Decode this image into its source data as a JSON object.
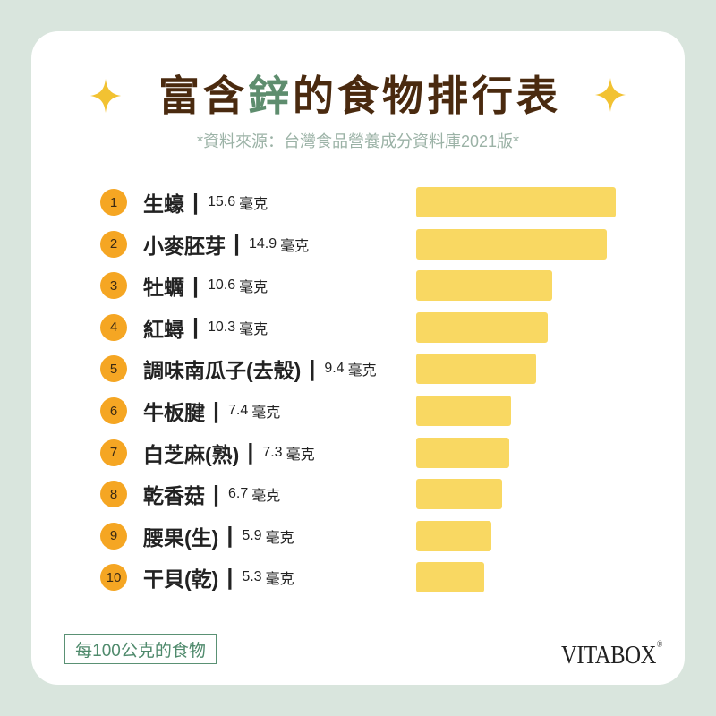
{
  "header": {
    "title_before": "富含",
    "title_highlight": "鋅",
    "title_after": "的食物排行表",
    "source": "*資料來源：台灣食品營養成分資料庫2021版*"
  },
  "chart_data": {
    "type": "bar",
    "orientation": "horizontal",
    "ranks": [
      "1",
      "2",
      "3",
      "4",
      "5",
      "6",
      "7",
      "8",
      "9",
      "10"
    ],
    "categories": [
      "生蠔",
      "小麥胚芽",
      "牡蠣",
      "紅蟳",
      "調味南瓜子(去殼)",
      "牛板腱",
      "白芝麻(熟)",
      "乾香菇",
      "腰果(生)",
      "干貝(乾)"
    ],
    "values": [
      15.6,
      14.9,
      10.6,
      10.3,
      9.4,
      7.4,
      7.3,
      6.7,
      5.9,
      5.3
    ],
    "unit": "毫克",
    "grid": false,
    "legend": "none"
  },
  "labels": {
    "separator": "|"
  },
  "footer": {
    "note": "每100公克的食物",
    "brand": "VITABOX",
    "brand_mark": "®"
  },
  "icons": {
    "title_left": "sparkle-icon",
    "title_right": "sparkle-icon"
  },
  "colors": {
    "page_background": "#d9e5dd",
    "card": "#ffffff",
    "title": "#4a2a0f",
    "title_highlight": "#5e8d6e",
    "sparkle": "#f2c232",
    "rank_circle": "#f5a623",
    "bar": "#f9d862",
    "source_text": "#9bb2a6",
    "note": "#5a9174"
  }
}
